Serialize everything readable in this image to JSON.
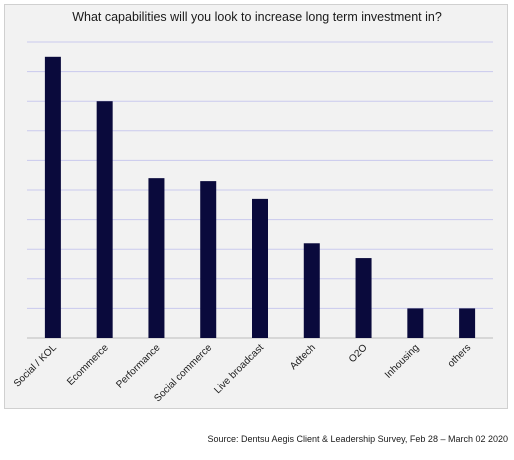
{
  "chart_data": {
    "type": "bar",
    "title": "What capabilities will you look to increase long term investment in?",
    "categories": [
      "Social / KOL",
      "Ecommerce",
      "Performance",
      "Social commerce",
      "Live broadcast",
      "Adtech",
      "O2O",
      "Inhousing",
      "others"
    ],
    "values": [
      9.5,
      8.0,
      5.4,
      5.3,
      4.7,
      3.2,
      2.7,
      1.0,
      1.0
    ],
    "ylim": [
      0,
      10
    ],
    "gridlines": 10,
    "grid": true,
    "y_axis_labels": false,
    "colors": {
      "bar": "#0a0a3c",
      "grid": "#c9c9ee",
      "background": "#f2f2f2"
    }
  },
  "source": "Source: Dentsu Aegis Client & Leadership Survey, Feb 28 – March 02 2020"
}
